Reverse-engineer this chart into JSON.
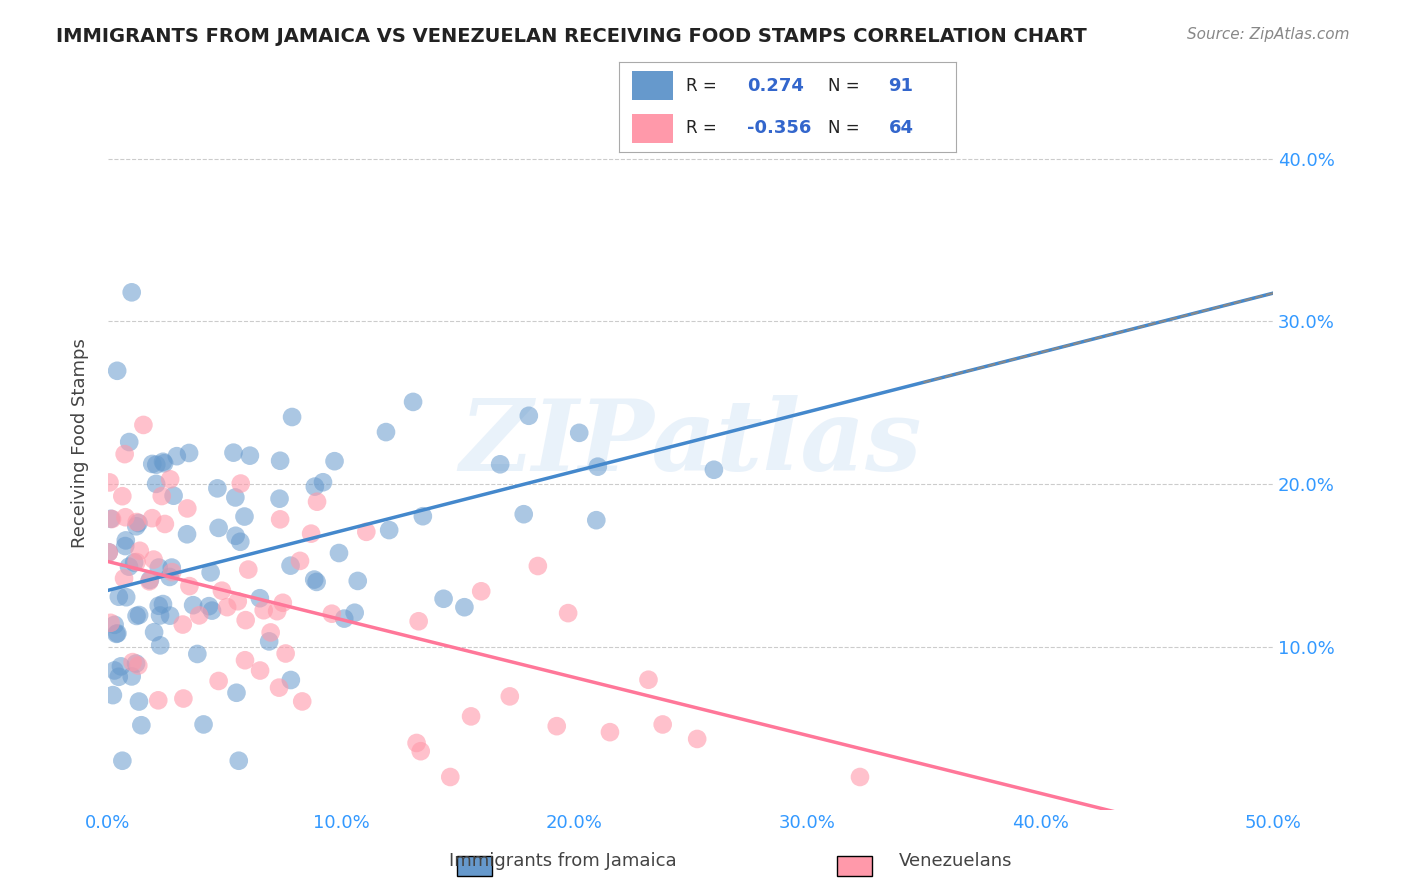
{
  "title": "IMMIGRANTS FROM JAMAICA VS VENEZUELAN RECEIVING FOOD STAMPS CORRELATION CHART",
  "source": "Source: ZipAtlas.com",
  "ylabel": "Receiving Food Stamps",
  "xlabel": "",
  "xlim": [
    0.0,
    0.5
  ],
  "ylim": [
    0.0,
    0.45
  ],
  "xtick_labels": [
    "0.0%",
    "10.0%",
    "20.0%",
    "30.0%",
    "40.0%",
    "50.0%"
  ],
  "xtick_vals": [
    0.0,
    0.1,
    0.2,
    0.3,
    0.4,
    0.5
  ],
  "ytick_labels": [
    "10.0%",
    "20.0%",
    "30.0%",
    "40.0%"
  ],
  "ytick_vals": [
    0.1,
    0.2,
    0.3,
    0.4
  ],
  "right_ytick_labels": [
    "10.0%",
    "20.0%",
    "30.0%",
    "40.0%"
  ],
  "jamaica_color": "#6699CC",
  "venezuela_color": "#FF99AA",
  "jamaica_R": 0.274,
  "jamaica_N": 91,
  "venezuela_R": -0.356,
  "venezuela_N": 64,
  "watermark": "ZIPatlas",
  "legend_label1": "Immigrants from Jamaica",
  "legend_label2": "Venezuelans",
  "background_color": "#ffffff",
  "grid_color": "#cccccc",
  "title_color": "#222222",
  "axis_label_color": "#444444",
  "tick_label_color": "#3399FF",
  "legend_R_color": "#3366CC",
  "legend_box_color": "#3399FF"
}
